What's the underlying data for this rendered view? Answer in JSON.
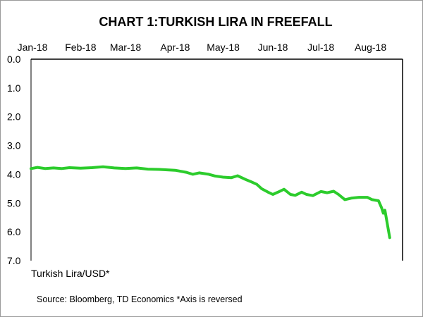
{
  "chart_data": {
    "type": "line",
    "title": "CHART 1:TURKISH LIRA IN FREEFALL",
    "xlabel": "",
    "ylabel": "Turkish Lira/USD*",
    "source": "Source: Bloomberg, TD Economics  *Axis is reversed",
    "x_tick_labels": [
      "Jan-18",
      "Feb-18",
      "Mar-18",
      "Apr-18",
      "May-18",
      "Jun-18",
      "Jul-18",
      "Aug-18"
    ],
    "y_tick_labels": [
      "0.0",
      "1.0",
      "2.0",
      "3.0",
      "4.0",
      "5.0",
      "6.0",
      "7.0"
    ],
    "ylim": [
      0,
      7
    ],
    "y_reversed": true,
    "xlim": [
      "2018-01-01",
      "2018-08-21"
    ],
    "grid": false,
    "series": [
      {
        "color": "#2ccc2c",
        "points": [
          [
            "2018-01-01",
            3.8
          ],
          [
            "2018-01-05",
            3.76
          ],
          [
            "2018-01-10",
            3.8
          ],
          [
            "2018-01-15",
            3.78
          ],
          [
            "2018-01-20",
            3.8
          ],
          [
            "2018-01-25",
            3.77
          ],
          [
            "2018-02-01",
            3.79
          ],
          [
            "2018-02-08",
            3.77
          ],
          [
            "2018-02-15",
            3.74
          ],
          [
            "2018-02-22",
            3.78
          ],
          [
            "2018-03-01",
            3.8
          ],
          [
            "2018-03-08",
            3.78
          ],
          [
            "2018-03-15",
            3.82
          ],
          [
            "2018-03-22",
            3.83
          ],
          [
            "2018-04-01",
            3.86
          ],
          [
            "2018-04-08",
            3.93
          ],
          [
            "2018-04-12",
            4.0
          ],
          [
            "2018-04-16",
            3.95
          ],
          [
            "2018-04-22",
            4.0
          ],
          [
            "2018-04-26",
            4.06
          ],
          [
            "2018-05-01",
            4.1
          ],
          [
            "2018-05-06",
            4.12
          ],
          [
            "2018-05-10",
            4.05
          ],
          [
            "2018-05-15",
            4.18
          ],
          [
            "2018-05-18",
            4.25
          ],
          [
            "2018-05-22",
            4.35
          ],
          [
            "2018-05-25",
            4.5
          ],
          [
            "2018-05-29",
            4.62
          ],
          [
            "2018-06-01",
            4.7
          ],
          [
            "2018-06-05",
            4.6
          ],
          [
            "2018-06-08",
            4.52
          ],
          [
            "2018-06-12",
            4.7
          ],
          [
            "2018-06-15",
            4.73
          ],
          [
            "2018-06-19",
            4.62
          ],
          [
            "2018-06-22",
            4.7
          ],
          [
            "2018-06-26",
            4.74
          ],
          [
            "2018-07-01",
            4.6
          ],
          [
            "2018-07-05",
            4.64
          ],
          [
            "2018-07-09",
            4.59
          ],
          [
            "2018-07-12",
            4.7
          ],
          [
            "2018-07-16",
            4.88
          ],
          [
            "2018-07-20",
            4.83
          ],
          [
            "2018-07-25",
            4.8
          ],
          [
            "2018-07-30",
            4.8
          ],
          [
            "2018-08-02",
            4.88
          ],
          [
            "2018-08-06",
            4.92
          ],
          [
            "2018-08-08",
            5.18
          ],
          [
            "2018-08-09",
            5.35
          ],
          [
            "2018-08-10",
            5.25
          ],
          [
            "2018-08-13",
            6.2
          ]
        ]
      }
    ]
  }
}
